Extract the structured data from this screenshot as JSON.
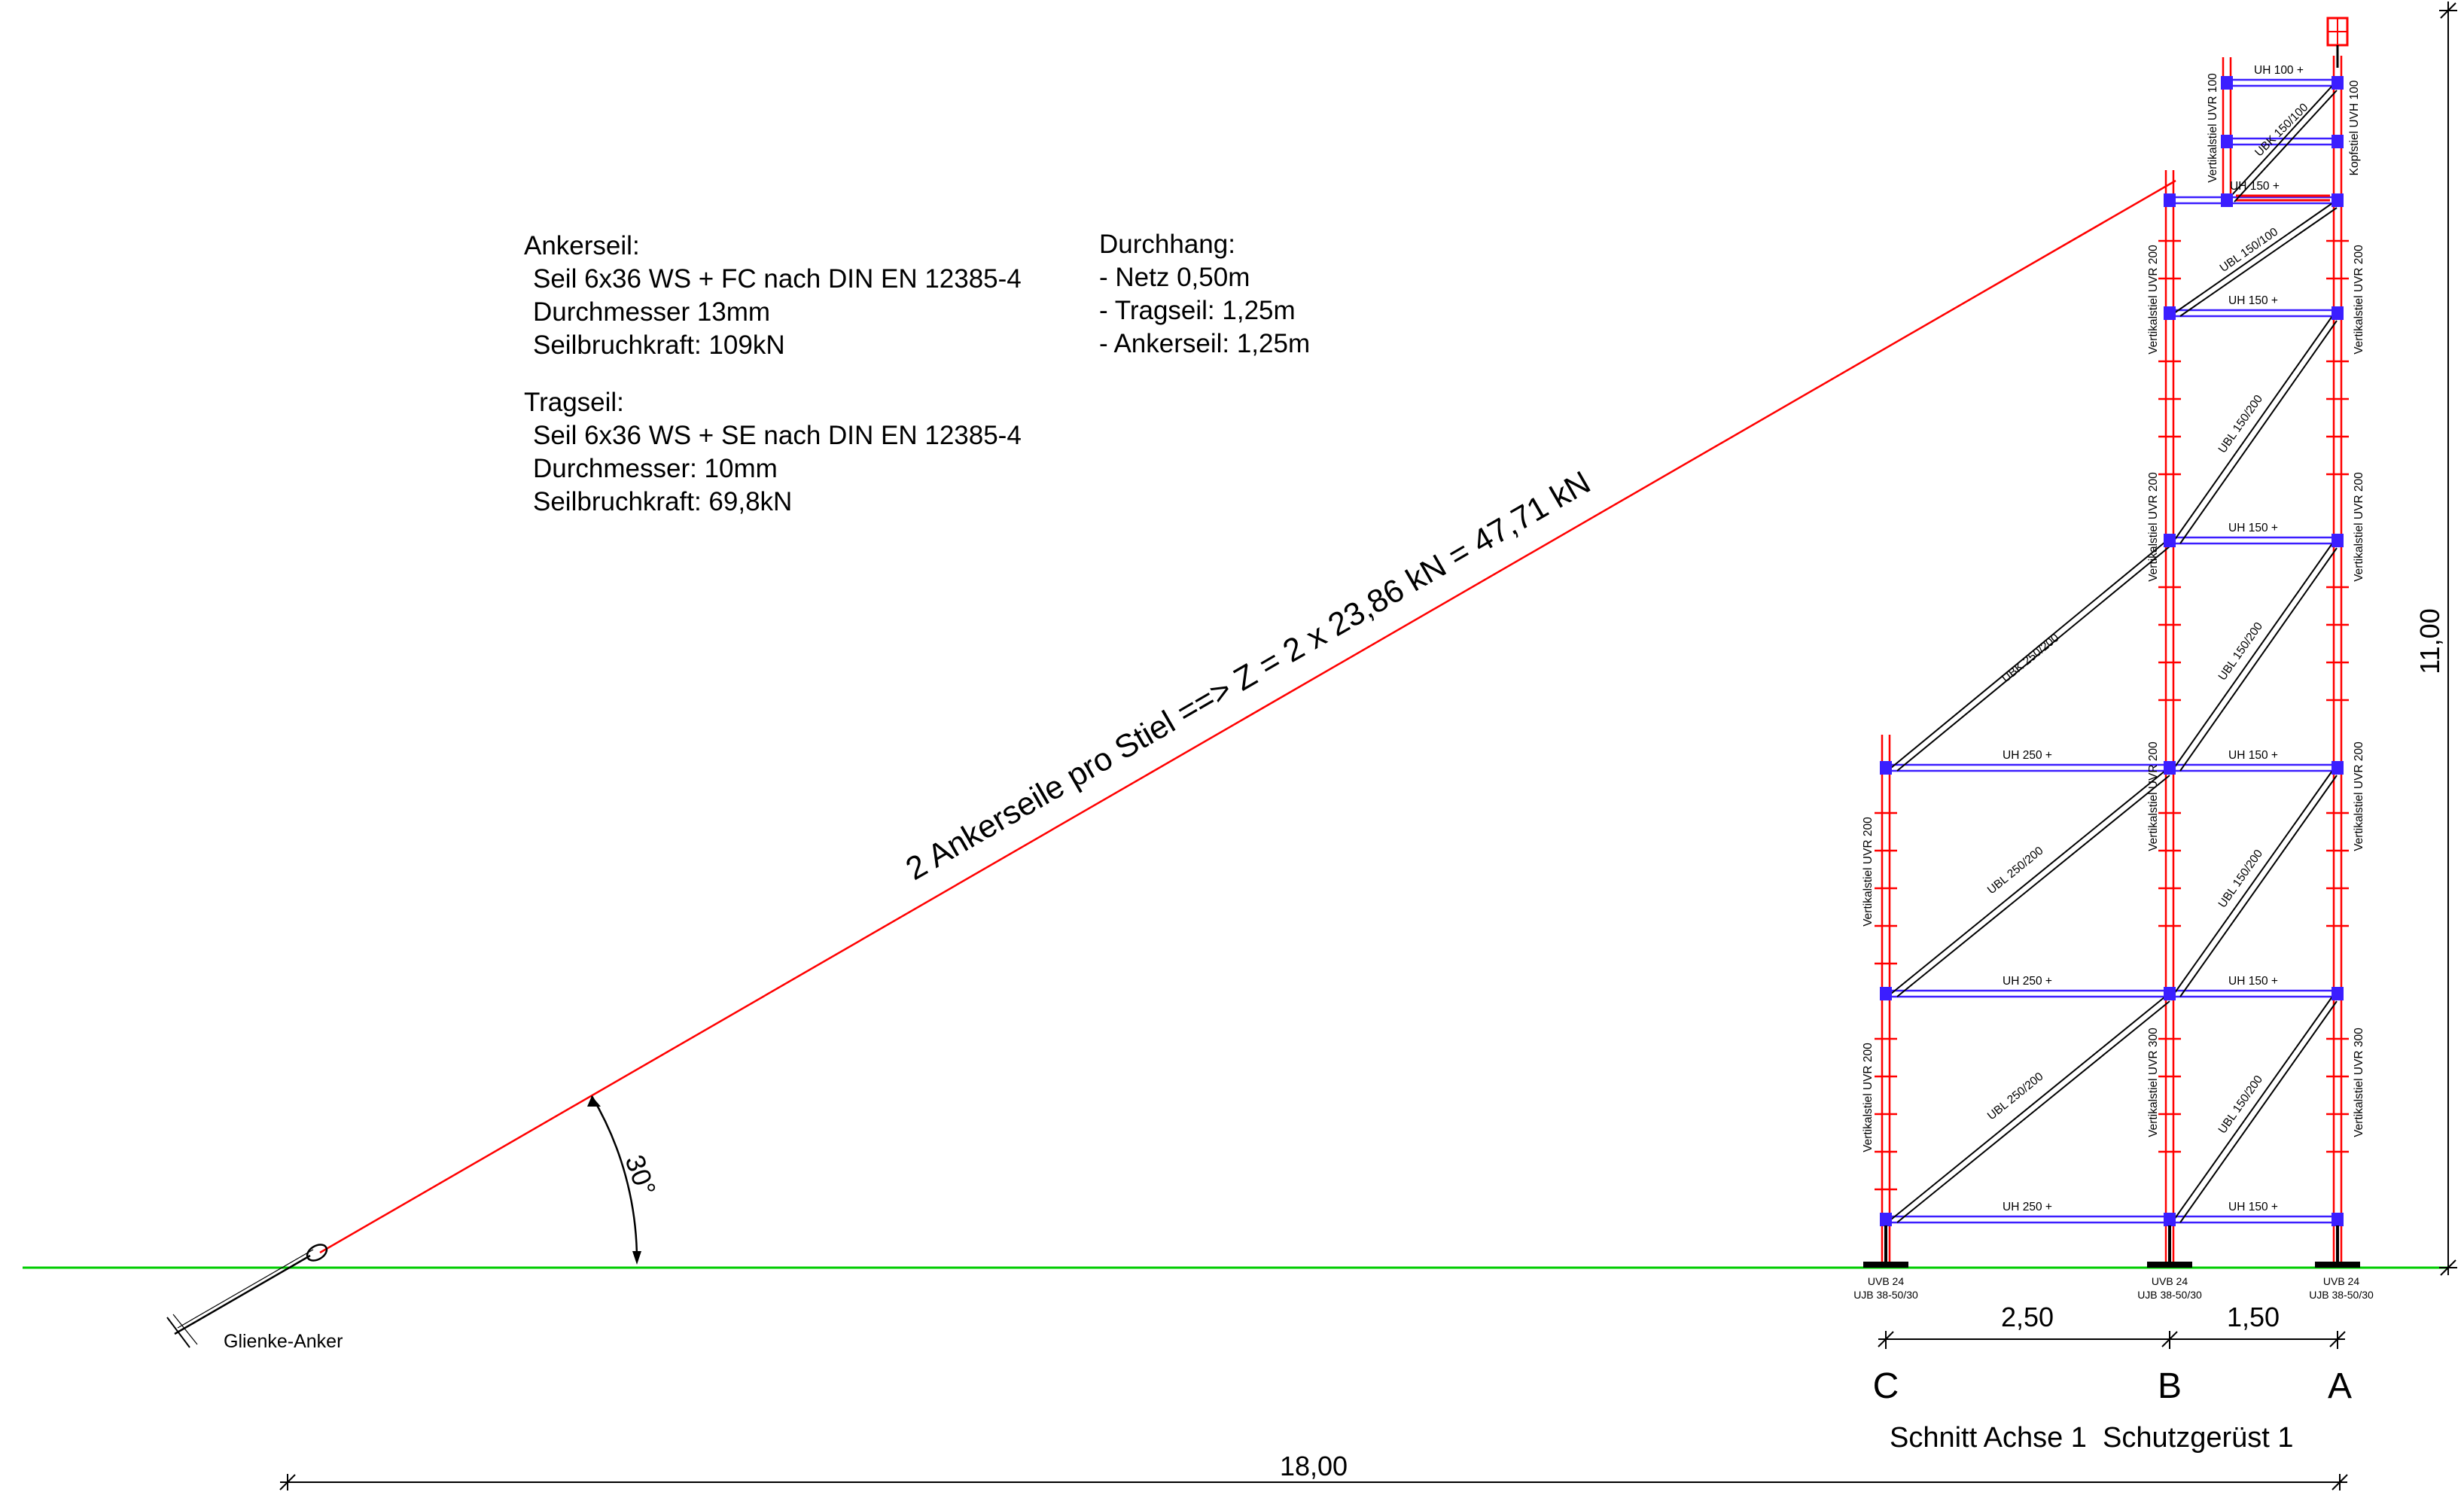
{
  "notes": {
    "ankerseil": {
      "heading": "Ankerseil:",
      "lines": [
        "Seil 6x36 WS + FC nach DIN EN 12385-4",
        "Durchmesser 13mm",
        "Seilbruchkraft: 109kN"
      ]
    },
    "tragseil": {
      "heading": "Tragseil:",
      "lines": [
        "Seil 6x36 WS + SE nach DIN EN 12385-4",
        "Durchmesser: 10mm",
        "Seilbruchkraft: 69,8kN"
      ]
    },
    "durchhang": {
      "heading": "Durchhang:",
      "lines": [
        "- Netz 0,50m",
        "- Tragseil: 1,25m",
        "- Ankerseil: 1,25m"
      ]
    }
  },
  "rope_label": "2 Ankerseile pro Stiel ==> Z = 2 x 23,86 kN = 47,71 kN",
  "angle_label": "30°",
  "anchor_label": "Glienke-Anker",
  "dimensions": {
    "height": "11,00",
    "width_cb": "2,50",
    "width_ba": "1,50",
    "total": "18,00"
  },
  "axes": {
    "c": "C",
    "b": "B",
    "a": "A"
  },
  "section_title": "Schnitt Achse 1  Schutzgerüst 1",
  "base_labels": {
    "c": [
      "UVB 24",
      "UJB 38-50/30"
    ],
    "b": [
      "UVB 24",
      "UJB 38-50/30"
    ],
    "a": [
      "UVB 24",
      "UJB 38-50/30"
    ]
  },
  "ledgers": {
    "cb": [
      "UH 250 +",
      "UH 250 +",
      "UH 250 +"
    ],
    "ba": [
      "UH 150 +",
      "UH 150 +",
      "UH 150 +",
      "UH 150 +",
      "UH 150 +",
      "UH 150 +"
    ],
    "top": [
      "UH 150 +",
      "UH 100 +"
    ]
  },
  "diagonals": {
    "cb": [
      "UBL 250/200",
      "UBL 250/200",
      "UBK 250/200"
    ],
    "ba": [
      "UBL 150/200",
      "UBL 150/200",
      "UBL 150/200",
      "UBL 150/200",
      "UBL 150/100"
    ],
    "top": "UBK 150/100"
  },
  "posts": {
    "c": [
      "Vertikalstiel UVR 200",
      "Vertikalstiel UVR 200"
    ],
    "b": [
      "Vertikalstiel UVR 300",
      "Vertikalstiel UVR 200",
      "Vertikalstiel UVR 200",
      "Vertikalstiel UVR 200"
    ],
    "a": [
      "Vertikalstiel UVR 300",
      "Vertikalstiel UVR 200",
      "Vertikalstiel UVR 200",
      "Vertikalstiel UVR 200"
    ],
    "top_left": "Vertikalstiel UVR 100",
    "top_right": "Kopfstiel UVH 100"
  },
  "colors": {
    "ground": "#00cc00",
    "rope": "#ff0000",
    "scaffold_post": "#ff0000",
    "ledger": "#3b1eff",
    "diagonal": "#000000"
  }
}
